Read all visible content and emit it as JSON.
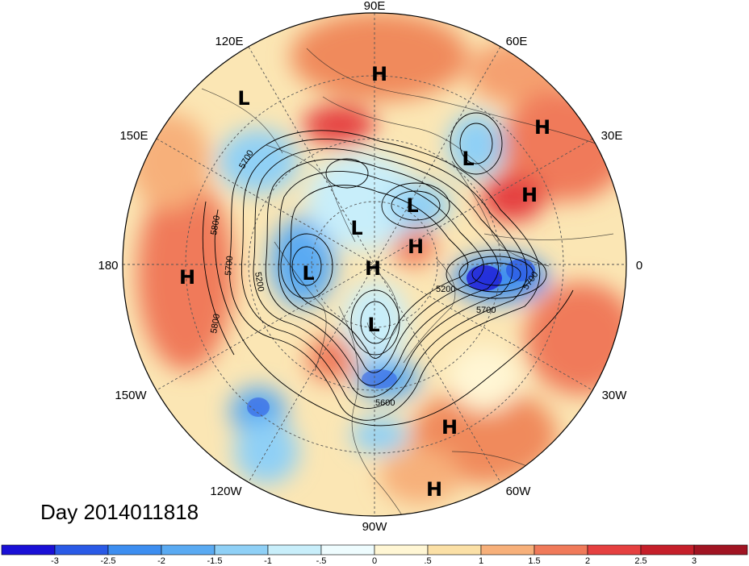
{
  "date_label": "Day 2014011818",
  "lon_labels": {
    "n": "90E",
    "ne1": "60E",
    "ne2": "30E",
    "e": "0",
    "se1": "30W",
    "se2": "60W",
    "s": "90W",
    "sw1": "120W",
    "sw2": "150W",
    "w": "180",
    "nw1": "150E",
    "nw2": "120E"
  },
  "centers": [
    {
      "type": "H",
      "region": "central Asia"
    },
    {
      "type": "L",
      "region": "Far East Russia"
    },
    {
      "type": "H",
      "region": "Middle East"
    },
    {
      "type": "L",
      "region": "Scandinavia"
    },
    {
      "type": "H",
      "region": "North Africa"
    },
    {
      "type": "L",
      "region": "Siberia"
    },
    {
      "type": "L",
      "region": "Arctic"
    },
    {
      "type": "H",
      "region": "Barents"
    },
    {
      "type": "L",
      "region": "Alaska"
    },
    {
      "type": "H",
      "region": "North Pole"
    },
    {
      "type": "H",
      "region": "Central Pacific"
    },
    {
      "type": "L",
      "region": "Hudson Bay"
    },
    {
      "type": "H",
      "region": "Atlantic"
    },
    {
      "type": "H",
      "region": "Caribbean"
    }
  ],
  "contour_labels": [
    "5700",
    "5800",
    "5700",
    "5200",
    "5800",
    "5200",
    "5700",
    "5700",
    "5600"
  ],
  "colorbar": {
    "ticks": [
      "-3",
      "-2.5",
      "-2",
      "-1.5",
      "-1",
      "-.5",
      "0",
      ".5",
      "1",
      "1.5",
      "2",
      "2.5",
      "3"
    ],
    "colors": [
      "#1a10d6",
      "#2a5ae6",
      "#3d8ef0",
      "#5aaaf2",
      "#8fd0f6",
      "#c8eefa",
      "#eefcfe",
      "#fff6d4",
      "#fbe0a6",
      "#f7b07a",
      "#f07a5a",
      "#e54040",
      "#c51f2a",
      "#a01422"
    ]
  }
}
